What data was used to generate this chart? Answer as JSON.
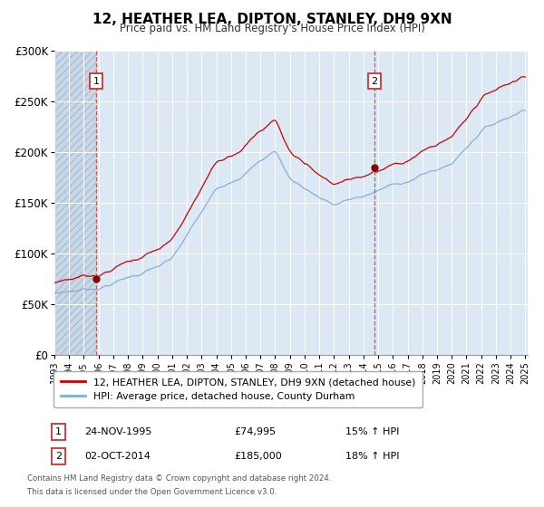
{
  "title": "12, HEATHER LEA, DIPTON, STANLEY, DH9 9XN",
  "subtitle": "Price paid vs. HM Land Registry's House Price Index (HPI)",
  "legend_property": "12, HEATHER LEA, DIPTON, STANLEY, DH9 9XN (detached house)",
  "legend_hpi": "HPI: Average price, detached house, County Durham",
  "sale1_date": "24-NOV-1995",
  "sale1_price": 74995,
  "sale1_year": 1995,
  "sale1_month": 11,
  "sale2_date": "02-OCT-2014",
  "sale2_price": 185000,
  "sale2_year": 2014,
  "sale2_month": 10,
  "sale1_hpi_pct": "15% ↑ HPI",
  "sale2_hpi_pct": "18% ↑ HPI",
  "footnote1": "Contains HM Land Registry data © Crown copyright and database right 2024.",
  "footnote2": "This data is licensed under the Open Government Licence v3.0.",
  "ylim": [
    0,
    300000
  ],
  "yticks": [
    0,
    50000,
    100000,
    150000,
    200000,
    250000,
    300000
  ],
  "ytick_labels": [
    "£0",
    "£50K",
    "£100K",
    "£150K",
    "£200K",
    "£250K",
    "£300K"
  ],
  "bg_color": "#dce9f5",
  "grid_color": "#ffffff",
  "red_line_color": "#cc0000",
  "blue_line_color": "#7bafd4",
  "dot_color": "#880000",
  "vline_color": "#cc4444",
  "label_box_edgecolor": "#cc3333",
  "fig_bg": "#ffffff",
  "hatch_bg": "#c8d8e8"
}
